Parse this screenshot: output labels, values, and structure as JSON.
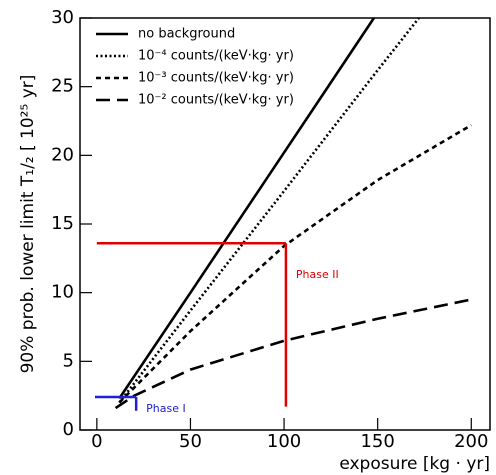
{
  "chart_data": {
    "type": "line",
    "xlabel": "exposure  [kg · yr]",
    "ylabel": "90% prob. lower limit   T₁/₂  [ 10²⁵ yr]",
    "xlim": [
      -9,
      210
    ],
    "ylim": [
      0,
      30
    ],
    "xticks": [
      0,
      50,
      100,
      150,
      200
    ],
    "yticks": [
      0,
      5,
      10,
      15,
      20,
      25,
      30
    ],
    "legend": "upper left",
    "series": [
      {
        "name": "no background",
        "color": "#000000",
        "dash": "solid",
        "x": [
          12,
          50,
          100,
          148
        ],
        "values": [
          2.3,
          10.0,
          20.2,
          30
        ]
      },
      {
        "name": "10⁻⁴ counts/(keV·kg· yr)",
        "color": "#000000",
        "dash": "dotted",
        "x": [
          12,
          50,
          100,
          150,
          172
        ],
        "values": [
          2.0,
          8.7,
          17.4,
          26.2,
          30
        ]
      },
      {
        "name": "10⁻³ counts/(keV·kg· yr)",
        "color": "#000000",
        "dash": "dashed",
        "x": [
          12,
          50,
          100,
          150,
          200
        ],
        "values": [
          2.0,
          7.2,
          13.4,
          18.2,
          22.2
        ]
      },
      {
        "name": "10⁻² counts/(keV·kg· yr)",
        "color": "#000000",
        "dash": "longdash",
        "x": [
          10,
          20,
          50,
          100,
          150,
          200
        ],
        "values": [
          1.6,
          2.5,
          4.4,
          6.5,
          8.1,
          9.5
        ]
      }
    ],
    "annotations": [
      {
        "label": "Phase II",
        "color": "#e00000",
        "x0": 0,
        "exposure": 101,
        "y0": 1.7,
        "limit": 13.6
      },
      {
        "label": "Phase I",
        "color": "#2020d0",
        "x0": -1,
        "exposure": 21,
        "y0": 1.4,
        "limit": 2.4
      }
    ]
  }
}
